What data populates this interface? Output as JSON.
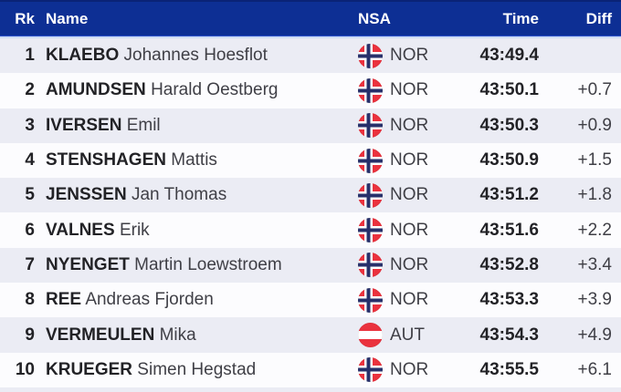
{
  "table": {
    "columns": [
      {
        "key": "rank",
        "label": "Rk"
      },
      {
        "key": "name",
        "label": "Name"
      },
      {
        "key": "nsa",
        "label": "NSA"
      },
      {
        "key": "time",
        "label": "Time"
      },
      {
        "key": "diff",
        "label": "Diff"
      }
    ],
    "rows": [
      {
        "rank": "1",
        "surname": "KLAEBO",
        "given_name": "Johannes Hoesflot",
        "nsa": "NOR",
        "time": "43:49.4",
        "diff": ""
      },
      {
        "rank": "2",
        "surname": "AMUNDSEN",
        "given_name": "Harald Oestberg",
        "nsa": "NOR",
        "time": "43:50.1",
        "diff": "+0.7"
      },
      {
        "rank": "3",
        "surname": "IVERSEN",
        "given_name": "Emil",
        "nsa": "NOR",
        "time": "43:50.3",
        "diff": "+0.9"
      },
      {
        "rank": "4",
        "surname": "STENSHAGEN",
        "given_name": "Mattis",
        "nsa": "NOR",
        "time": "43:50.9",
        "diff": "+1.5"
      },
      {
        "rank": "5",
        "surname": "JENSSEN",
        "given_name": "Jan Thomas",
        "nsa": "NOR",
        "time": "43:51.2",
        "diff": "+1.8"
      },
      {
        "rank": "6",
        "surname": "VALNES",
        "given_name": "Erik",
        "nsa": "NOR",
        "time": "43:51.6",
        "diff": "+2.2"
      },
      {
        "rank": "7",
        "surname": "NYENGET",
        "given_name": "Martin Loewstroem",
        "nsa": "NOR",
        "time": "43:52.8",
        "diff": "+3.4"
      },
      {
        "rank": "8",
        "surname": "REE",
        "given_name": "Andreas Fjorden",
        "nsa": "NOR",
        "time": "43:53.3",
        "diff": "+3.9"
      },
      {
        "rank": "9",
        "surname": "VERMEULEN",
        "given_name": "Mika",
        "nsa": "AUT",
        "time": "43:54.3",
        "diff": "+4.9"
      },
      {
        "rank": "10",
        "surname": "KRUEGER",
        "given_name": "Simen Hegstad",
        "nsa": "NOR",
        "time": "43:55.5",
        "diff": "+6.1"
      }
    ]
  },
  "colors": {
    "header_bg": "#0d2f94",
    "header_top_line": "#0a2376",
    "header_text": "#ffffff",
    "divider_blue": "#2f53cd",
    "divider_light": "#cddcf3",
    "row_alt_bg": "#ebecf4",
    "row_bg": "#fcfcfe",
    "text_primary": "#222226",
    "text_secondary": "#3f3f46",
    "flag_red": "#ea323e",
    "flag_navy": "#27306b"
  }
}
